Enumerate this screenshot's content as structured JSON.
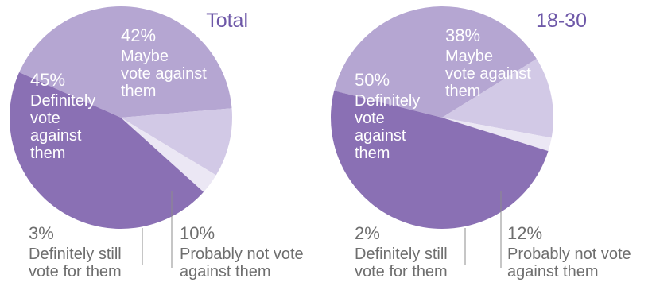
{
  "colors": {
    "definitely_against": "#8a70b4",
    "maybe_against": "#b5a6d2",
    "probably_not_against": "#d2c9e6",
    "definitely_for": "#ebe7f4",
    "title": "#6e58a8",
    "label_inside": "#ffffff",
    "label_outside": "#6e6e6e",
    "leader_line": "#8c8c8c"
  },
  "chart_data": [
    {
      "type": "pie",
      "title": "Total",
      "slices": [
        {
          "key": "maybe",
          "label": "Maybe vote against them",
          "value": 42,
          "value_label": "42%",
          "lines": [
            "Maybe",
            "vote against",
            "them"
          ]
        },
        {
          "key": "probably",
          "label": "Probably not vote against them",
          "value": 10,
          "value_label": "10%",
          "lines": [
            "Probably not vote",
            "against them"
          ]
        },
        {
          "key": "still",
          "label": "Definitely still vote for them",
          "value": 3,
          "value_label": "3%",
          "lines": [
            "Definitely still",
            "vote for them"
          ]
        },
        {
          "key": "definitely",
          "label": "Definitely vote against them",
          "value": 45,
          "value_label": "45%",
          "lines": [
            "Definitely",
            "vote",
            "against",
            "them"
          ]
        }
      ]
    },
    {
      "type": "pie",
      "title": "18-30",
      "slices": [
        {
          "key": "maybe",
          "label": "Maybe vote against them",
          "value": 38,
          "value_label": "38%",
          "lines": [
            "Maybe",
            "vote against",
            "them"
          ]
        },
        {
          "key": "probably",
          "label": "Probably not vote against them",
          "value": 12,
          "value_label": "12%",
          "lines": [
            "Probably not vote",
            "against them"
          ]
        },
        {
          "key": "still",
          "label": "Definitely still vote for them",
          "value": 2,
          "value_label": "2%",
          "lines": [
            "Definitely still",
            "vote for them"
          ]
        },
        {
          "key": "definitely",
          "label": "Definitely vote against them",
          "value": 50,
          "value_label": "50%",
          "lines": [
            "Definitely",
            "vote",
            "against",
            "them"
          ]
        }
      ]
    }
  ]
}
